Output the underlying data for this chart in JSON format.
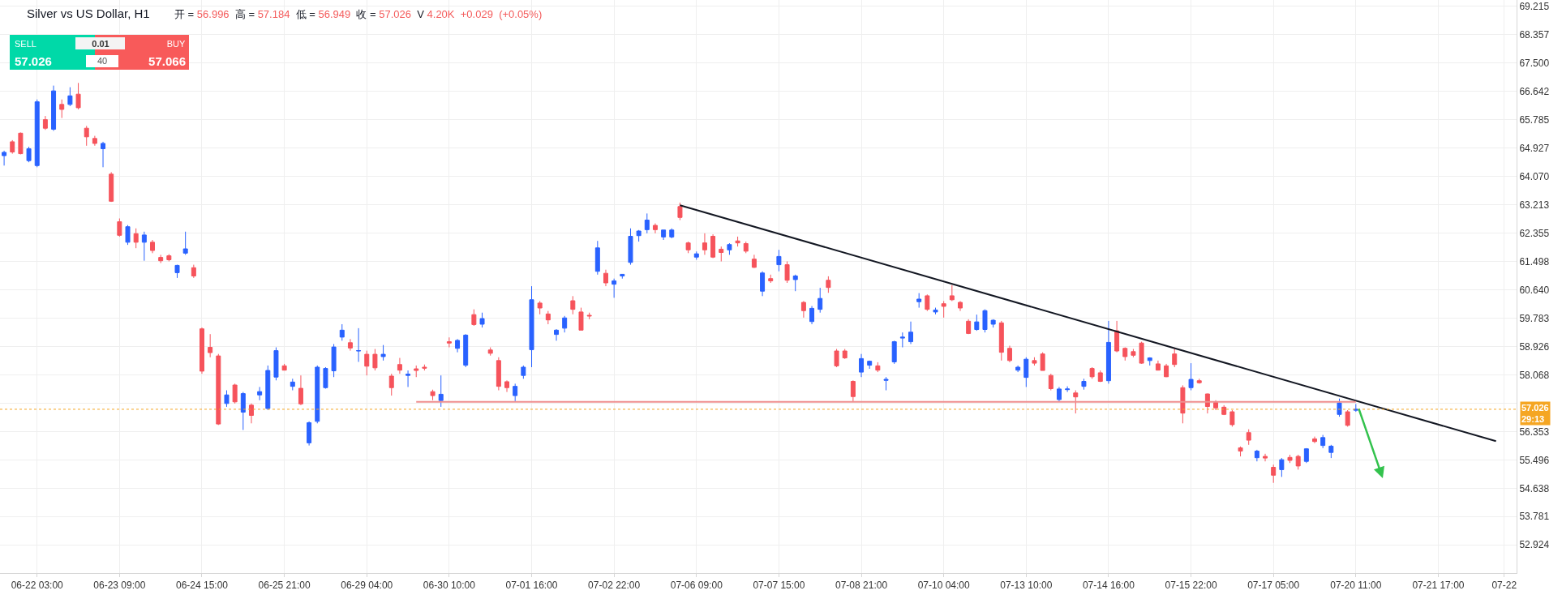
{
  "chart_data": {
    "type": "candlestick",
    "title": "Silver vs US Dollar, H1",
    "subtitle": "开 = 56.996 高 = 57.184 低 = 56.949 收 = 57.026 V 4.20K +0.029 (+0.05%)",
    "annotations": [
      "SELL",
      "57.026",
      "BUY",
      "57.066",
      "0.01",
      "40"
    ],
    "categories": [
      null,
      null,
      null,
      null,
      "06-22 03:00",
      null,
      null,
      null,
      null,
      null,
      null,
      null,
      null,
      null,
      "06-23 09:00",
      null,
      null,
      null,
      null,
      null,
      null,
      null,
      null,
      null,
      "06-24 15:00",
      null,
      null,
      null,
      null,
      null,
      null,
      null,
      null,
      null,
      "06-25 21:00",
      null,
      null,
      null,
      null,
      null,
      null,
      null,
      null,
      null,
      "06-29 04:00",
      null,
      null,
      null,
      null,
      null,
      null,
      null,
      null,
      null,
      "06-30 10:00",
      null,
      null,
      null,
      null,
      null,
      null,
      null,
      null,
      null,
      "07-01 16:00",
      null,
      null,
      null,
      null,
      null,
      null,
      null,
      null,
      null,
      "07-02 22:00",
      null,
      null,
      null,
      null,
      null,
      null,
      null,
      null,
      null,
      "07-06 09:00",
      null,
      null,
      null,
      null,
      null,
      null,
      null,
      null,
      null,
      "07-07 15:00",
      null,
      null,
      null,
      null,
      null,
      null,
      null,
      null,
      null,
      "07-08 21:00",
      null,
      null,
      null,
      null,
      null,
      null,
      null,
      null,
      null,
      "07-10 04:00",
      null,
      null,
      null,
      null,
      null,
      null,
      null,
      null,
      null,
      "07-13 10:00",
      null,
      null,
      null,
      null,
      null,
      null,
      null,
      null,
      null,
      "07-14 16:00",
      null,
      null,
      null,
      null,
      null,
      null,
      null,
      null,
      null,
      "07-15 22:00",
      null,
      null,
      null,
      null,
      null,
      null,
      null,
      null,
      null,
      "07-17 05:00",
      null,
      null,
      null,
      null,
      null,
      null,
      null,
      null,
      null,
      "07-20 11:00",
      null,
      null,
      null,
      null,
      null,
      null,
      null,
      null,
      null,
      "07-21 17:00",
      null,
      null,
      null,
      null,
      null,
      null,
      null,
      "07-22",
      null
    ],
    "ohlc": [
      [
        64.7,
        64.85,
        64.4,
        64.8
      ],
      [
        65.12,
        65.17,
        64.76,
        64.81
      ],
      [
        65.38,
        65.4,
        64.74,
        64.76
      ],
      [
        64.55,
        64.97,
        64.5,
        64.91
      ],
      [
        64.4,
        66.4,
        64.35,
        66.33
      ],
      [
        65.79,
        65.9,
        65.48,
        65.53
      ],
      [
        65.5,
        66.82,
        65.45,
        66.66
      ],
      [
        66.25,
        66.4,
        65.84,
        66.1
      ],
      [
        66.25,
        66.77,
        66.2,
        66.51
      ],
      [
        66.56,
        66.9,
        66.1,
        66.15
      ],
      [
        65.53,
        65.6,
        65.0,
        65.27
      ],
      [
        65.22,
        65.3,
        65.0,
        65.07
      ],
      [
        64.91,
        65.12,
        64.35,
        65.07
      ],
      [
        64.14,
        64.2,
        63.3,
        63.32
      ],
      [
        62.7,
        62.8,
        62.25,
        62.29
      ],
      [
        62.08,
        62.6,
        62.0,
        62.55
      ],
      [
        62.34,
        62.5,
        61.9,
        62.08
      ],
      [
        62.08,
        62.4,
        61.52,
        62.3
      ],
      [
        62.08,
        62.15,
        61.75,
        61.83
      ],
      [
        61.62,
        61.7,
        61.45,
        61.52
      ],
      [
        61.67,
        61.72,
        61.5,
        61.55
      ],
      [
        61.16,
        61.4,
        61.0,
        61.38
      ],
      [
        61.75,
        62.4,
        61.7,
        61.88
      ],
      [
        61.31,
        61.4,
        61.0,
        61.06
      ],
      [
        59.46,
        59.5,
        58.1,
        58.18
      ],
      [
        58.9,
        59.3,
        58.6,
        58.74
      ],
      [
        58.64,
        58.7,
        56.55,
        56.58
      ],
      [
        57.2,
        57.6,
        57.1,
        57.46
      ],
      [
        57.76,
        57.8,
        57.2,
        57.25
      ],
      [
        56.94,
        57.55,
        56.4,
        57.5
      ],
      [
        57.15,
        57.2,
        56.6,
        56.84
      ],
      [
        57.46,
        57.7,
        57.3,
        57.56
      ],
      [
        57.05,
        58.35,
        57.0,
        58.2
      ],
      [
        58.0,
        58.9,
        57.9,
        58.8
      ],
      [
        58.34,
        58.4,
        58.2,
        58.21
      ],
      [
        57.72,
        57.95,
        57.6,
        57.85
      ],
      [
        57.66,
        58.05,
        57.15,
        57.19
      ],
      [
        56.01,
        56.66,
        55.93,
        56.62
      ],
      [
        56.66,
        58.35,
        56.6,
        58.3
      ],
      [
        57.68,
        58.3,
        57.65,
        58.26
      ],
      [
        58.19,
        59.0,
        58.0,
        58.91
      ],
      [
        59.21,
        59.6,
        59.1,
        59.42
      ],
      [
        59.04,
        59.15,
        58.8,
        58.88
      ],
      [
        58.79,
        59.48,
        58.46,
        58.8
      ],
      [
        58.69,
        58.8,
        58.05,
        58.33
      ],
      [
        58.69,
        58.85,
        58.2,
        58.28
      ],
      [
        58.62,
        58.97,
        58.5,
        58.69
      ],
      [
        58.03,
        58.1,
        57.44,
        57.68
      ],
      [
        58.38,
        58.58,
        58.1,
        58.21
      ],
      [
        58.05,
        58.2,
        57.7,
        58.09
      ],
      [
        58.25,
        58.35,
        58.0,
        58.2
      ],
      [
        58.3,
        58.38,
        58.2,
        58.27
      ],
      [
        57.56,
        57.62,
        57.3,
        57.44
      ],
      [
        57.29,
        58.05,
        57.1,
        57.48
      ],
      [
        59.07,
        59.2,
        58.9,
        59.03
      ],
      [
        58.87,
        59.15,
        58.75,
        59.11
      ],
      [
        58.36,
        59.3,
        58.3,
        59.27
      ],
      [
        59.89,
        60.05,
        59.55,
        59.59
      ],
      [
        59.6,
        59.95,
        59.5,
        59.77
      ],
      [
        58.82,
        58.9,
        58.65,
        58.72
      ],
      [
        58.5,
        58.6,
        57.6,
        57.72
      ],
      [
        57.86,
        57.9,
        57.55,
        57.68
      ],
      [
        57.44,
        57.8,
        57.27,
        57.72
      ],
      [
        58.05,
        58.35,
        57.95,
        58.3
      ],
      [
        58.83,
        60.75,
        58.3,
        60.34
      ],
      [
        60.24,
        60.3,
        59.9,
        60.09
      ],
      [
        59.91,
        60.0,
        59.6,
        59.73
      ],
      [
        59.29,
        59.45,
        59.1,
        59.42
      ],
      [
        59.48,
        59.85,
        59.35,
        59.79
      ],
      [
        60.31,
        60.45,
        59.9,
        60.05
      ],
      [
        59.97,
        60.1,
        59.42,
        59.42
      ],
      [
        59.87,
        59.95,
        59.75,
        59.85
      ],
      [
        61.2,
        62.12,
        61.1,
        61.91
      ],
      [
        61.14,
        61.25,
        60.75,
        60.85
      ],
      [
        60.81,
        60.98,
        60.4,
        60.91
      ],
      [
        61.06,
        61.12,
        60.98,
        61.11
      ],
      [
        61.47,
        62.5,
        61.4,
        62.26
      ],
      [
        62.28,
        62.45,
        62.1,
        62.42
      ],
      [
        62.46,
        62.95,
        62.35,
        62.75
      ],
      [
        62.59,
        62.65,
        62.35,
        62.46
      ],
      [
        62.24,
        62.45,
        62.15,
        62.45
      ],
      [
        62.24,
        62.5,
        62.2,
        62.45
      ],
      [
        63.16,
        63.28,
        62.75,
        62.83
      ],
      [
        62.06,
        62.1,
        61.75,
        61.85
      ],
      [
        61.63,
        61.8,
        61.55,
        61.73
      ],
      [
        62.06,
        62.35,
        61.7,
        61.85
      ],
      [
        62.26,
        62.32,
        61.6,
        61.63
      ],
      [
        61.87,
        61.95,
        61.5,
        61.77
      ],
      [
        61.85,
        62.05,
        61.7,
        62.01
      ],
      [
        62.12,
        62.25,
        61.95,
        62.06
      ],
      [
        62.04,
        62.1,
        61.75,
        61.81
      ],
      [
        61.57,
        61.7,
        61.3,
        61.32
      ],
      [
        60.6,
        61.2,
        60.45,
        61.15
      ],
      [
        60.98,
        61.1,
        60.85,
        60.91
      ],
      [
        61.4,
        61.85,
        61.2,
        61.65
      ],
      [
        61.4,
        61.5,
        60.85,
        60.93
      ],
      [
        60.95,
        61.1,
        60.6,
        61.06
      ],
      [
        60.26,
        60.3,
        59.8,
        60.01
      ],
      [
        59.68,
        60.15,
        59.6,
        60.08
      ],
      [
        60.05,
        60.7,
        59.95,
        60.38
      ],
      [
        60.93,
        61.05,
        60.55,
        60.71
      ],
      [
        58.79,
        58.85,
        58.3,
        58.34
      ],
      [
        58.79,
        58.85,
        58.55,
        58.58
      ],
      [
        57.87,
        57.9,
        57.25,
        57.41
      ],
      [
        58.15,
        58.7,
        58.0,
        58.56
      ],
      [
        58.36,
        58.5,
        58.25,
        58.48
      ],
      [
        58.34,
        58.45,
        58.15,
        58.21
      ],
      [
        57.9,
        58.0,
        57.6,
        57.93
      ],
      [
        58.46,
        59.1,
        58.4,
        59.07
      ],
      [
        59.18,
        59.35,
        58.9,
        59.21
      ],
      [
        59.07,
        59.68,
        59.0,
        59.36
      ],
      [
        60.28,
        60.54,
        60.1,
        60.36
      ],
      [
        60.46,
        60.5,
        60.0,
        60.05
      ],
      [
        59.97,
        60.1,
        59.9,
        60.03
      ],
      [
        60.22,
        60.3,
        59.8,
        60.14
      ],
      [
        60.46,
        60.78,
        60.3,
        60.34
      ],
      [
        60.26,
        60.3,
        60.0,
        60.09
      ],
      [
        59.69,
        59.75,
        59.3,
        59.32
      ],
      [
        59.44,
        59.89,
        59.4,
        59.67
      ],
      [
        59.44,
        60.05,
        59.35,
        60.01
      ],
      [
        59.6,
        59.75,
        59.5,
        59.72
      ],
      [
        59.64,
        59.7,
        58.5,
        58.75
      ],
      [
        58.87,
        58.95,
        58.45,
        58.5
      ],
      [
        58.21,
        58.35,
        58.15,
        58.3
      ],
      [
        57.99,
        58.6,
        57.7,
        58.54
      ],
      [
        58.5,
        58.6,
        58.35,
        58.42
      ],
      [
        58.7,
        58.75,
        58.2,
        58.2
      ],
      [
        58.05,
        58.1,
        57.6,
        57.65
      ],
      [
        57.32,
        57.7,
        57.25,
        57.64
      ],
      [
        57.62,
        57.72,
        57.55,
        57.64
      ],
      [
        57.52,
        57.6,
        56.9,
        57.4
      ],
      [
        57.72,
        57.95,
        57.62,
        57.87
      ],
      [
        58.26,
        58.3,
        57.95,
        58.01
      ],
      [
        58.13,
        58.2,
        57.85,
        57.87
      ],
      [
        57.89,
        59.7,
        57.8,
        59.05
      ],
      [
        59.4,
        59.7,
        58.75,
        58.79
      ],
      [
        58.87,
        58.9,
        58.5,
        58.62
      ],
      [
        58.77,
        58.85,
        58.6,
        58.66
      ],
      [
        59.03,
        59.07,
        58.4,
        58.42
      ],
      [
        58.5,
        58.6,
        58.35,
        58.58
      ],
      [
        58.4,
        58.5,
        58.2,
        58.21
      ],
      [
        58.34,
        58.4,
        58.0,
        58.01
      ],
      [
        58.7,
        58.87,
        58.3,
        58.38
      ],
      [
        57.68,
        57.75,
        56.6,
        56.91
      ],
      [
        57.68,
        58.42,
        57.6,
        57.93
      ],
      [
        57.89,
        57.95,
        57.8,
        57.83
      ],
      [
        57.49,
        57.5,
        56.9,
        57.11
      ],
      [
        57.23,
        57.3,
        57.0,
        57.07
      ],
      [
        57.09,
        57.15,
        56.85,
        56.87
      ],
      [
        56.95,
        57.0,
        56.5,
        56.56
      ],
      [
        55.86,
        55.9,
        55.6,
        55.76
      ],
      [
        56.32,
        56.42,
        55.95,
        56.09
      ],
      [
        55.56,
        55.8,
        55.45,
        55.76
      ],
      [
        55.6,
        55.68,
        55.45,
        55.55
      ],
      [
        55.27,
        55.35,
        54.8,
        55.03
      ],
      [
        55.2,
        55.55,
        54.98,
        55.5
      ],
      [
        55.57,
        55.65,
        55.4,
        55.48
      ],
      [
        55.6,
        55.65,
        55.2,
        55.31
      ],
      [
        55.45,
        55.85,
        55.4,
        55.83
      ],
      [
        56.13,
        56.2,
        56.0,
        56.05
      ],
      [
        55.93,
        56.25,
        55.85,
        56.17
      ],
      [
        55.72,
        55.95,
        55.55,
        55.91
      ],
      [
        56.87,
        57.35,
        56.8,
        57.22
      ],
      [
        56.95,
        57.0,
        56.5,
        56.54
      ],
      [
        56.996,
        57.184,
        56.949,
        57.026
      ],
      null,
      null,
      null,
      null,
      null,
      null,
      null,
      null,
      null,
      null,
      null,
      null,
      null,
      null,
      null,
      null,
      null,
      null,
      null
    ],
    "colors": [
      "#2962ff",
      "#f6535b",
      "#f6535b",
      "#2962ff",
      "#2962ff",
      "#f6535b",
      "#2962ff",
      "#f6535b",
      "#2962ff",
      "#f6535b",
      "#f6535b",
      "#f6535b",
      "#2962ff",
      "#f6535b",
      "#f6535b",
      "#2962ff",
      "#f6535b",
      "#2962ff",
      "#f6535b",
      "#f6535b",
      "#f6535b",
      "#2962ff",
      "#2962ff",
      "#f6535b",
      "#f6535b",
      "#f6535b",
      "#f6535b",
      "#2962ff",
      "#f6535b",
      "#2962ff",
      "#f6535b",
      "#2962ff",
      "#2962ff",
      "#2962ff",
      "#f6535b",
      "#2962ff",
      "#f6535b",
      "#2962ff",
      "#2962ff",
      "#2962ff",
      "#2962ff",
      "#2962ff",
      "#f6535b",
      "#2962ff",
      "#f6535b",
      "#f6535b",
      "#2962ff",
      "#f6535b",
      "#f6535b",
      "#2962ff",
      "#f6535b",
      "#f6535b",
      "#f6535b",
      "#2962ff",
      "#f6535b",
      "#2962ff",
      "#2962ff",
      "#f6535b",
      "#2962ff",
      "#f6535b",
      "#f6535b",
      "#f6535b",
      "#2962ff",
      "#2962ff",
      "#2962ff",
      "#f6535b",
      "#f6535b",
      "#2962ff",
      "#2962ff",
      "#f6535b",
      "#f6535b",
      "#f6535b",
      "#2962ff",
      "#f6535b",
      "#2962ff",
      "#2962ff",
      "#2962ff",
      "#2962ff",
      "#2962ff",
      "#f6535b",
      "#2962ff",
      "#2962ff",
      "#f6535b",
      "#f6535b",
      "#2962ff",
      "#f6535b",
      "#f6535b",
      "#f6535b",
      "#2962ff",
      "#f6535b",
      "#f6535b",
      "#f6535b",
      "#2962ff",
      "#f6535b",
      "#2962ff",
      "#f6535b",
      "#2962ff",
      "#f6535b",
      "#2962ff",
      "#2962ff",
      "#f6535b",
      "#f6535b",
      "#f6535b",
      "#f6535b",
      "#2962ff",
      "#2962ff",
      "#f6535b",
      "#2962ff",
      "#2962ff",
      "#2962ff",
      "#2962ff",
      "#2962ff",
      "#f6535b",
      "#2962ff",
      "#f6535b",
      "#f6535b",
      "#f6535b",
      "#f6535b",
      "#2962ff",
      "#2962ff",
      "#2962ff",
      "#f6535b",
      "#f6535b",
      "#2962ff",
      "#2962ff",
      "#f6535b",
      "#f6535b",
      "#f6535b",
      "#2962ff",
      "#2962ff",
      "#f6535b",
      "#2962ff",
      "#f6535b",
      "#f6535b",
      "#2962ff",
      "#f6535b",
      "#f6535b",
      "#f6535b",
      "#f6535b",
      "#2962ff",
      "#f6535b",
      "#f6535b",
      "#f6535b",
      "#f6535b",
      "#2962ff",
      "#f6535b",
      "#f6535b",
      "#f6535b",
      "#f6535b",
      "#f6535b",
      "#f6535b",
      "#f6535b",
      "#2962ff",
      "#f6535b",
      "#f6535b",
      "#2962ff",
      "#f6535b",
      "#f6535b",
      "#2962ff",
      "#f6535b",
      "#2962ff",
      "#2962ff",
      "#2962ff",
      "#f6535b",
      "#2962ff",
      null,
      null,
      null,
      null,
      null,
      null,
      null,
      null,
      null,
      null,
      null,
      null,
      null,
      null,
      null,
      null,
      null,
      null,
      null
    ],
    "series": [
      {
        "type": "line",
        "color": "#131722",
        "values": [
          null,
          null,
          null,
          null,
          null,
          null,
          null,
          null,
          null,
          null,
          null,
          null,
          null,
          null,
          null,
          null,
          null,
          null,
          null,
          null,
          null,
          null,
          null,
          null,
          null,
          null,
          null,
          null,
          null,
          null,
          null,
          null,
          null,
          null,
          null,
          null,
          null,
          null,
          null,
          null,
          null,
          null,
          null,
          null,
          null,
          null,
          null,
          null,
          null,
          null,
          null,
          null,
          null,
          null,
          null,
          null,
          null,
          null,
          null,
          null,
          null,
          null,
          null,
          null,
          null,
          null,
          null,
          null,
          null,
          null,
          null,
          null,
          null,
          null,
          null,
          null,
          null,
          null,
          null,
          null,
          null,
          null,
          63.2,
          null,
          null,
          null,
          null,
          null,
          null,
          null,
          null,
          null,
          null,
          null,
          null,
          null,
          null,
          null,
          null,
          null,
          null,
          null,
          null,
          null,
          null,
          null,
          null,
          null,
          null,
          null,
          null,
          null,
          null,
          null,
          null,
          null,
          null,
          null,
          null,
          null,
          null,
          null,
          null,
          null,
          null,
          null,
          null,
          null,
          null,
          null,
          null,
          null,
          null,
          null,
          null,
          null,
          null,
          null,
          null,
          null,
          null,
          null,
          null,
          null,
          null,
          null,
          null,
          null,
          null,
          null,
          null,
          null,
          null,
          null,
          null,
          null,
          null,
          null,
          null,
          null,
          null,
          null,
          null,
          null,
          null,
          null,
          null,
          null,
          null,
          null,
          null,
          null,
          null,
          null,
          null,
          null,
          null,
          null,
          null,
          null,
          null,
          56.06,
          null,
          null
        ]
      },
      {
        "type": "line",
        "color": "#ef8f8f",
        "values": [
          null,
          null,
          null,
          null,
          null,
          null,
          null,
          null,
          null,
          null,
          null,
          null,
          null,
          null,
          null,
          null,
          null,
          null,
          null,
          null,
          null,
          null,
          null,
          null,
          null,
          null,
          null,
          null,
          null,
          null,
          null,
          null,
          null,
          null,
          null,
          null,
          null,
          null,
          null,
          null,
          null,
          null,
          null,
          null,
          null,
          null,
          null,
          null,
          null,
          null,
          57.25,
          null,
          null,
          null,
          null,
          null,
          null,
          null,
          null,
          null,
          null,
          null,
          null,
          null,
          null,
          null,
          null,
          null,
          null,
          null,
          null,
          null,
          null,
          null,
          null,
          null,
          null,
          null,
          null,
          null,
          null,
          null,
          null,
          null,
          null,
          null,
          null,
          null,
          null,
          null,
          null,
          null,
          null,
          null,
          null,
          null,
          null,
          null,
          null,
          null,
          null,
          null,
          null,
          null,
          null,
          null,
          null,
          null,
          null,
          null,
          null,
          null,
          null,
          null,
          null,
          null,
          null,
          null,
          null,
          null,
          null,
          null,
          null,
          null,
          null,
          null,
          null,
          null,
          null,
          null,
          null,
          null,
          null,
          null,
          null,
          null,
          null,
          null,
          null,
          null,
          null,
          null,
          null,
          null,
          null,
          null,
          null,
          null,
          null,
          null,
          null,
          null,
          null,
          null,
          null,
          null,
          null,
          null,
          null,
          null,
          null,
          null,
          null,
          null,
          57.25,
          null,
          null,
          null,
          null,
          null,
          null,
          null,
          null,
          null,
          null,
          null,
          null,
          null,
          null,
          null,
          null,
          null,
          null,
          null
        ]
      }
    ],
    "ref_lines": [
      {
        "axis": "y",
        "value": 57.026,
        "label": "57.026\n29:13",
        "color": "#f5a623",
        "line_style": "dotted"
      }
    ],
    "ylim": [
      52.07,
      69.41
    ],
    "yticks": [
      69.215,
      68.357,
      {
        "value": 67.5,
        "label": "67.500"
      },
      66.642,
      65.785,
      64.927,
      {
        "value": 64.07,
        "label": "64.070"
      },
      63.213,
      62.355,
      61.498,
      {
        "value": 60.64,
        "label": "60.640"
      },
      59.783,
      58.926,
      58.068,
      {
        "value": 57.211,
        "label": null
      },
      56.353,
      55.496,
      54.638,
      53.781,
      52.924
    ],
    "grid": true
  }
}
